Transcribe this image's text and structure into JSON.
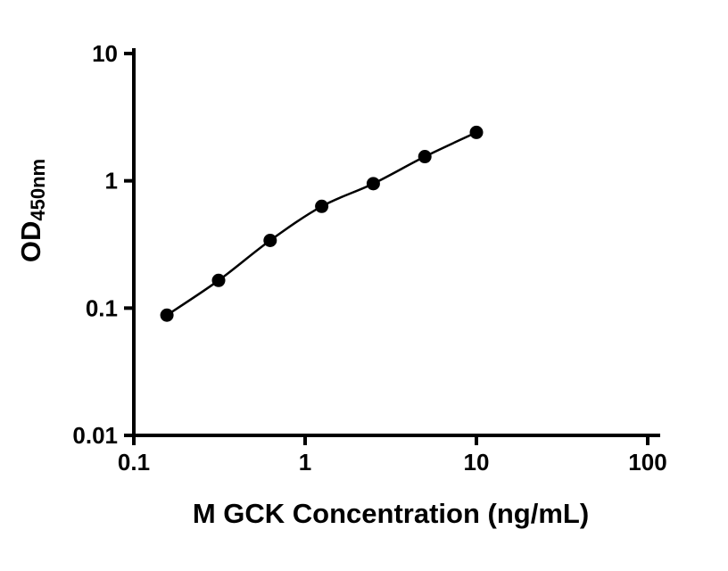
{
  "chart_data": {
    "type": "scatter",
    "title": "",
    "xlabel": "M GCK Concentration (ng/mL)",
    "ylabel_main": "OD",
    "ylabel_sub": "450nm",
    "x_scale": "log",
    "y_scale": "log",
    "xlim": [
      0.1,
      100
    ],
    "ylim": [
      0.01,
      10
    ],
    "x_ticks": [
      0.1,
      1,
      10,
      100
    ],
    "x_tick_labels": [
      "0.1",
      "1",
      "10",
      "100"
    ],
    "y_ticks": [
      0.01,
      0.1,
      1,
      10
    ],
    "y_tick_labels": [
      "0.01",
      "0.1",
      "1",
      "10"
    ],
    "x": [
      0.156,
      0.3125,
      0.625,
      1.25,
      2.5,
      5,
      10
    ],
    "y": [
      0.088,
      0.165,
      0.34,
      0.63,
      0.95,
      1.55,
      2.4
    ],
    "fit_curve": true,
    "grid": false,
    "legend": "none",
    "marker_color": "#000000",
    "line_color": "#000000",
    "axis_color": "#000000",
    "background_color": "#ffffff"
  }
}
